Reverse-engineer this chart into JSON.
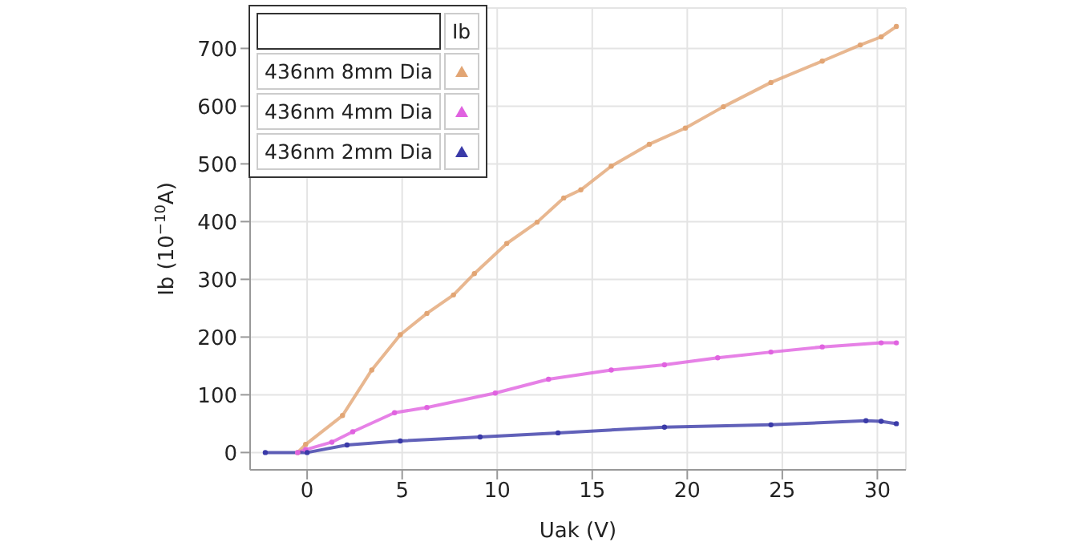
{
  "chart_data": {
    "type": "line",
    "xlabel": "Uak (V)",
    "ylabel": "Ib (10$^{−10}$A)",
    "legend_title": "Ib",
    "legend": "top left",
    "grid": true,
    "marker": "circle",
    "line_style": "solid",
    "xlim": [
      -3,
      31.5
    ],
    "xticks": [
      0,
      5,
      10,
      15,
      20,
      25,
      30
    ],
    "ylim": [
      -30,
      770
    ],
    "yticks": [
      0,
      100,
      200,
      300,
      400,
      500,
      600,
      700
    ],
    "series": [
      {
        "name": "436nm 8mm Dia",
        "color": "#e2a574",
        "x": [
          -0.5,
          -0.08,
          1.86,
          3.4,
          4.9,
          6.3,
          7.7,
          8.8,
          10.5,
          12.1,
          13.5,
          14.4,
          16.0,
          18.0,
          19.9,
          21.9,
          24.4,
          27.1,
          29.1,
          30.2,
          31.0
        ],
        "values": [
          0,
          14,
          64,
          143,
          204,
          241,
          273,
          310,
          362,
          399,
          441,
          455,
          496,
          534,
          562,
          599,
          641,
          678,
          706,
          720,
          738
        ]
      },
      {
        "name": "436nm 4mm Dia",
        "color": "#e062e0",
        "x": [
          -0.5,
          -0.08,
          1.3,
          2.4,
          4.6,
          6.3,
          9.9,
          12.7,
          16.0,
          18.8,
          21.6,
          24.4,
          27.1,
          30.2,
          31.0
        ],
        "values": [
          0,
          5,
          18,
          36,
          69,
          78,
          103,
          127,
          143,
          152,
          164,
          174,
          183,
          190,
          190
        ]
      },
      {
        "name": "436nm 2mm Dia",
        "color": "#3a3aa8",
        "x": [
          -2.2,
          0,
          2.1,
          4.9,
          9.1,
          13.2,
          18.8,
          24.4,
          29.4,
          30.2,
          31.0
        ],
        "values": [
          0,
          0,
          13,
          20,
          27,
          34,
          44,
          48,
          55,
          54,
          50
        ]
      }
    ]
  }
}
